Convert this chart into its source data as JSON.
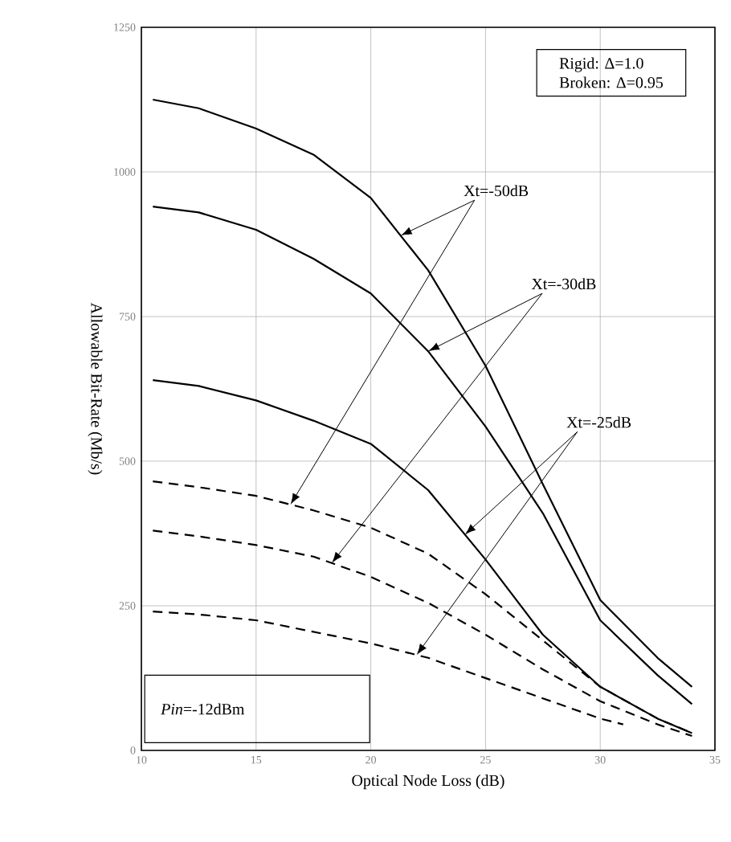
{
  "chart_data": {
    "type": "line",
    "xlabel": "Optical Node Loss (dB)",
    "ylabel": "Allowable Bit-Rate  (Mb/s)",
    "xlim": [
      10,
      35
    ],
    "ylim": [
      0,
      1250
    ],
    "xticks": [
      10,
      15,
      20,
      25,
      30,
      35
    ],
    "yticks": [
      0,
      250,
      500,
      750,
      1000,
      1250
    ],
    "grid": true,
    "series": [
      {
        "color": "#000000",
        "line_style": "solid",
        "x": [
          10.5,
          12.5,
          15,
          17.5,
          20,
          22.5,
          25,
          27.5,
          30,
          32.5,
          34
        ],
        "values": [
          1125,
          1110,
          1075,
          1030,
          955,
          830,
          665,
          460,
          260,
          160,
          110
        ]
      },
      {
        "color": "#000000",
        "line_style": "solid",
        "x": [
          10.5,
          12.5,
          15,
          17.5,
          20,
          22.5,
          25,
          27.5,
          30,
          32.5,
          34
        ],
        "values": [
          940,
          930,
          900,
          850,
          790,
          690,
          560,
          410,
          225,
          130,
          80
        ]
      },
      {
        "color": "#000000",
        "line_style": "solid",
        "x": [
          10.5,
          12.5,
          15,
          17.5,
          20,
          22.5,
          25,
          27.5,
          30,
          32.5,
          34
        ],
        "values": [
          640,
          630,
          605,
          570,
          530,
          450,
          330,
          200,
          110,
          55,
          30
        ]
      },
      {
        "color": "#000000",
        "line_style": "dashed",
        "x": [
          10.5,
          12.5,
          15,
          17.5,
          20,
          22.5,
          25,
          27.5,
          30,
          32.5,
          34
        ],
        "values": [
          465,
          455,
          440,
          415,
          385,
          340,
          270,
          190,
          110,
          55,
          30
        ]
      },
      {
        "color": "#000000",
        "line_style": "dashed",
        "x": [
          10.5,
          12.5,
          15,
          17.5,
          20,
          22.5,
          25,
          27.5,
          30,
          32.5,
          34
        ],
        "values": [
          380,
          370,
          355,
          335,
          300,
          255,
          200,
          140,
          85,
          45,
          25
        ]
      },
      {
        "color": "#000000",
        "line_style": "dashed",
        "x": [
          10.5,
          12.5,
          15,
          17.5,
          20,
          22.5,
          25,
          27.5,
          30,
          31
        ],
        "values": [
          240,
          235,
          225,
          205,
          185,
          160,
          125,
          90,
          55,
          45
        ]
      }
    ],
    "annotations": [
      "Rigid: Δ=1.0",
      "Broken: Δ=0.95",
      "*Pin*=-12dBm",
      {
        "text": "Xt=-50dB",
        "x": 21.3,
        "y": 890
      },
      {
        "text": "Xt=-30dB",
        "x": 22.5,
        "y": 690
      },
      {
        "text": "Xt=-25dB",
        "x": 24.1,
        "y": 373
      }
    ]
  }
}
